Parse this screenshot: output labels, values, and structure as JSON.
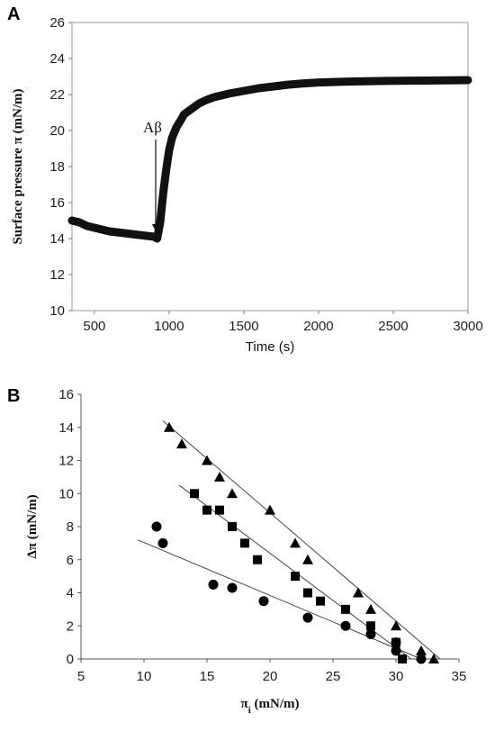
{
  "chart_data": [
    {
      "panel": "A",
      "type": "line",
      "xlabel": "Time (s)",
      "ylabel": "Surface pressure  π (mN/m)",
      "xlim": [
        350,
        3000
      ],
      "ylim": [
        10,
        26
      ],
      "xticks": [
        "500",
        "1000",
        "1500",
        "2000",
        "2500",
        "3000"
      ],
      "yticks": [
        "10",
        "12",
        "14",
        "16",
        "18",
        "20",
        "22",
        "24",
        "26"
      ],
      "annotation": {
        "text": "Aβ",
        "x": 910,
        "y": 14.0
      },
      "series": [
        {
          "x": [
            350,
            400,
            450,
            500,
            550,
            600,
            650,
            700,
            750,
            800,
            850,
            900,
            920,
            940,
            960,
            980,
            1000,
            1020,
            1050,
            1080,
            1100,
            1150,
            1200,
            1250,
            1300,
            1400,
            1500,
            1600,
            1700,
            1800,
            1900,
            2000,
            2200,
            2400,
            2600,
            2800,
            3000
          ],
          "y": [
            15.0,
            14.9,
            14.7,
            14.6,
            14.5,
            14.4,
            14.35,
            14.3,
            14.25,
            14.2,
            14.15,
            14.1,
            14.0,
            14.9,
            16.5,
            17.8,
            18.9,
            19.6,
            20.2,
            20.6,
            20.9,
            21.2,
            21.5,
            21.7,
            21.85,
            22.05,
            22.2,
            22.35,
            22.45,
            22.55,
            22.62,
            22.67,
            22.72,
            22.75,
            22.77,
            22.78,
            22.8
          ]
        }
      ]
    },
    {
      "panel": "B",
      "type": "scatter",
      "xlabel": "πi (mN/m)",
      "ylabel": "Δπ (mN/m)",
      "xlim": [
        5,
        35
      ],
      "ylim": [
        0,
        16
      ],
      "xticks": [
        "5",
        "10",
        "15",
        "20",
        "25",
        "30",
        "35"
      ],
      "yticks": [
        "0",
        "2",
        "4",
        "6",
        "8",
        "10",
        "12",
        "14",
        "16"
      ],
      "series": [
        {
          "marker": "triangle",
          "x": [
            12,
            13,
            15,
            16,
            17,
            20,
            22,
            23,
            27,
            28,
            30,
            32,
            33
          ],
          "y": [
            14,
            13,
            12,
            11,
            10,
            9,
            7,
            6,
            4,
            3,
            2,
            0.5,
            0
          ],
          "fit": {
            "x": [
              11.5,
              33.5
            ],
            "y": [
              14.4,
              0
            ]
          }
        },
        {
          "marker": "square",
          "x": [
            14,
            15,
            16,
            17,
            18,
            19,
            22,
            23,
            24,
            26,
            28,
            30,
            30.5
          ],
          "y": [
            10,
            9,
            9,
            8,
            7,
            6,
            5,
            4,
            3.5,
            3,
            2,
            1,
            0
          ],
          "fit": {
            "x": [
              12.8,
              31.2
            ],
            "y": [
              10.5,
              0
            ]
          }
        },
        {
          "marker": "circle",
          "x": [
            11,
            11.5,
            15.5,
            17,
            19.5,
            23,
            26,
            28,
            30,
            30,
            32
          ],
          "y": [
            8,
            7,
            4.5,
            4.3,
            3.5,
            2.5,
            2,
            1.5,
            1,
            0.5,
            0
          ],
          "fit": {
            "x": [
              9.5,
              32
            ],
            "y": [
              7.2,
              0
            ]
          }
        }
      ]
    }
  ],
  "labels": {
    "panel_a": "A",
    "panel_b": "B"
  }
}
